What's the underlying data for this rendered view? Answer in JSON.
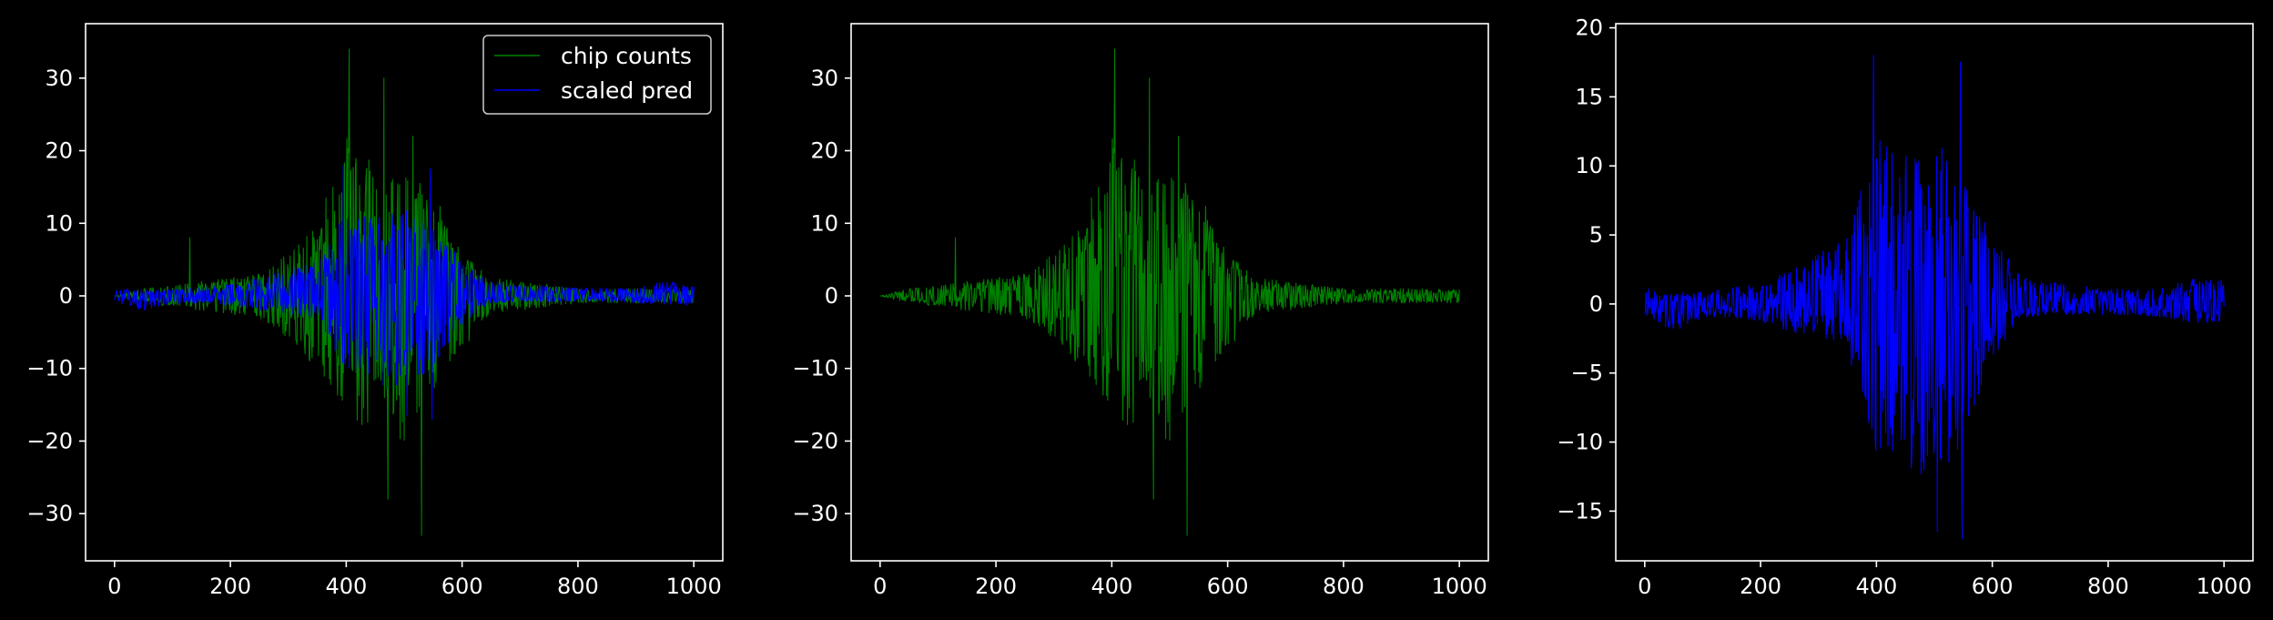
{
  "figure": {
    "background": "#000000",
    "foreground": "#ffffff"
  },
  "chart_data": [
    {
      "type": "line",
      "title": "",
      "xlabel": "",
      "ylabel": "",
      "xlim": [
        -50,
        1050
      ],
      "ylim": [
        -36.5,
        37.5
      ],
      "xticks": [
        0,
        200,
        400,
        600,
        800,
        1000
      ],
      "yticks": [
        -30,
        -20,
        -10,
        0,
        10,
        20,
        30
      ],
      "x": [
        0,
        50,
        100,
        150,
        200,
        250,
        300,
        350,
        400,
        450,
        500,
        550,
        600,
        650,
        700,
        750,
        800,
        850,
        900,
        950,
        1000
      ],
      "grid": false,
      "legend": "top-right",
      "series": [
        {
          "name": "chip counts",
          "color": "#008000",
          "upper": [
            0,
            1,
            1.5,
            2,
            2.5,
            3,
            6,
            10,
            22,
            18,
            17,
            15,
            6,
            2.5,
            2,
            1.5,
            1,
            1,
            1,
            1,
            1
          ],
          "lower": [
            0,
            -1,
            -1.5,
            -2,
            -2.5,
            -3,
            -6,
            -10,
            -18,
            -18,
            -20,
            -17,
            -8,
            -2.5,
            -2,
            -1.5,
            -1,
            -1,
            -1,
            -1,
            -1
          ],
          "peaks": [
            [
              130,
              8
            ],
            [
              405,
              34
            ],
            [
              465,
              30
            ],
            [
              515,
              22
            ],
            [
              472,
              -28
            ],
            [
              530,
              -33
            ]
          ]
        },
        {
          "name": "scaled pred",
          "color": "#0000ff",
          "upper": [
            1.2,
            0.8,
            0.9,
            1.2,
            1.6,
            2.5,
            3.8,
            5,
            12,
            11,
            12,
            10,
            5,
            2,
            1.6,
            1.3,
            1.1,
            1.1,
            1.2,
            2,
            1.8
          ],
          "lower": [
            -0.8,
            -2,
            -1,
            -1,
            -1.3,
            -2,
            -2.5,
            -3.5,
            -11,
            -12,
            -13,
            -10,
            -4,
            -1,
            -0.8,
            -0.8,
            -0.8,
            -0.8,
            -1,
            -1.5,
            -1.2
          ],
          "peaks": [
            [
              395,
              18
            ],
            [
              545,
              17.5
            ],
            [
              505,
              -16.5
            ],
            [
              548,
              -17
            ]
          ]
        }
      ]
    },
    {
      "type": "line",
      "title": "",
      "xlabel": "",
      "ylabel": "",
      "xlim": [
        -50,
        1050
      ],
      "ylim": [
        -36.5,
        37.5
      ],
      "xticks": [
        0,
        200,
        400,
        600,
        800,
        1000
      ],
      "yticks": [
        -30,
        -20,
        -10,
        0,
        10,
        20,
        30
      ],
      "x": [
        0,
        50,
        100,
        150,
        200,
        250,
        300,
        350,
        400,
        450,
        500,
        550,
        600,
        650,
        700,
        750,
        800,
        850,
        900,
        950,
        1000
      ],
      "grid": false,
      "legend": "none",
      "series": [
        {
          "color": "#008000",
          "upper": [
            0,
            1,
            1.5,
            2,
            2.5,
            3,
            6,
            10,
            22,
            18,
            17,
            15,
            6,
            2.5,
            2,
            1.5,
            1,
            1,
            1,
            1,
            1
          ],
          "lower": [
            0,
            -1,
            -1.5,
            -2,
            -2.5,
            -3,
            -6,
            -10,
            -18,
            -18,
            -20,
            -17,
            -8,
            -2.5,
            -2,
            -1.5,
            -1,
            -1,
            -1,
            -1,
            -1
          ],
          "peaks": [
            [
              130,
              8
            ],
            [
              405,
              34
            ],
            [
              465,
              30
            ],
            [
              515,
              22
            ],
            [
              472,
              -28
            ],
            [
              530,
              -33
            ]
          ]
        }
      ]
    },
    {
      "type": "line",
      "title": "",
      "xlabel": "",
      "ylabel": "",
      "xlim": [
        -50,
        1050
      ],
      "ylim": [
        -18.6,
        20.3
      ],
      "xticks": [
        0,
        200,
        400,
        600,
        800,
        1000
      ],
      "yticks": [
        -15,
        -10,
        -5,
        0,
        5,
        10,
        15,
        20
      ],
      "x": [
        0,
        50,
        100,
        150,
        200,
        250,
        300,
        350,
        400,
        450,
        500,
        550,
        600,
        650,
        700,
        750,
        800,
        850,
        900,
        950,
        1000
      ],
      "grid": false,
      "legend": "none",
      "series": [
        {
          "color": "#0000ff",
          "upper": [
            1.2,
            0.8,
            0.9,
            1.2,
            1.6,
            2.5,
            3.8,
            5,
            12,
            11,
            12,
            10,
            5,
            2,
            1.6,
            1.3,
            1.1,
            1.1,
            1.2,
            2,
            1.8
          ],
          "lower": [
            -0.8,
            -2,
            -1,
            -1,
            -1.3,
            -2,
            -2.5,
            -3.5,
            -11,
            -12,
            -13,
            -10,
            -4,
            -1,
            -0.8,
            -0.8,
            -0.8,
            -0.8,
            -1,
            -1.5,
            -1.2
          ],
          "peaks": [
            [
              395,
              18
            ],
            [
              545,
              17.5
            ],
            [
              505,
              -16.5
            ],
            [
              548,
              -17
            ]
          ]
        }
      ]
    }
  ]
}
